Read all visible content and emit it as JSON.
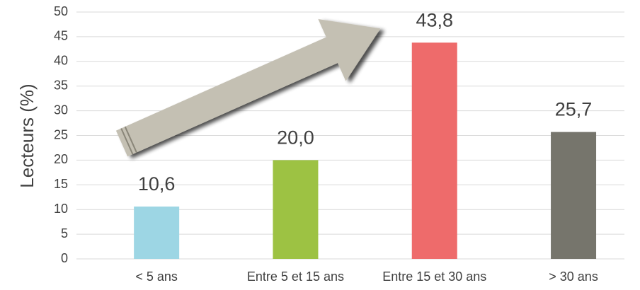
{
  "chart_data": {
    "type": "bar",
    "ylabel": "Lecteurs (%)",
    "categories": [
      "< 5 ans",
      "Entre 5 et 15 ans",
      "Entre 15 et 30 ans",
      "> 30 ans"
    ],
    "values": [
      10.6,
      20.0,
      43.8,
      25.7
    ],
    "value_labels": [
      "10,6",
      "20,0",
      "43,8",
      "25,7"
    ],
    "colors": [
      "#9dd6e4",
      "#9dc243",
      "#ee6b6b",
      "#76756c"
    ],
    "ylim": [
      0,
      50
    ],
    "yticks": [
      0,
      5,
      10,
      15,
      20,
      25,
      30,
      35,
      40,
      45,
      50
    ],
    "grid": true
  }
}
